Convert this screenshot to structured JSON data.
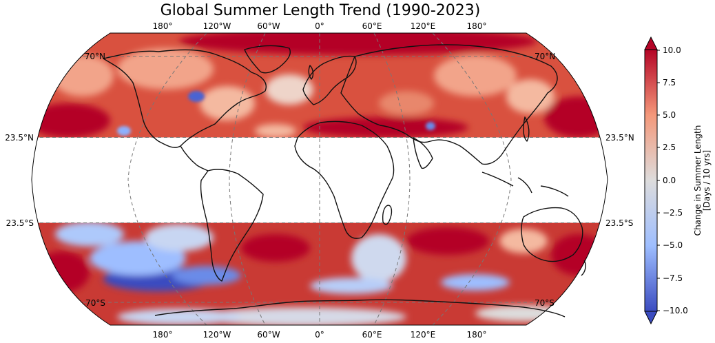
{
  "title": "Global Summer Length Trend (1990-2023)",
  "top_lon_labels": [
    "180°",
    "120°W",
    "60°W",
    "0°",
    "60°E",
    "120°E",
    "180°"
  ],
  "bottom_lon_labels": [
    "180°",
    "120°W",
    "60°W",
    "0°",
    "60°E",
    "120°E",
    "180°"
  ],
  "lat_labels": {
    "north_70": "70°N",
    "north_23": "23.5°N",
    "south_23": "23.5°S",
    "south_70": "70°S"
  },
  "colorbar": {
    "label_line1": "Change in Summer Length",
    "label_line2": "[Days / 10 yrs]",
    "ticks": [
      "10.0",
      "7.5",
      "5.0",
      "2.5",
      "0.0",
      "−2.5",
      "−5.0",
      "−7.5",
      "−10.0"
    ],
    "cmap": "coolwarm",
    "vmin": -10,
    "vmax": 10,
    "extend": "both",
    "colors": {
      "dark_blue": "#3b4cc0",
      "light_blue": "#8db0fe",
      "neutral": "#dddcdc",
      "light_red": "#f49a7b",
      "dark_red": "#b40426"
    }
  },
  "map": {
    "projection": "Robinson",
    "masked_band": "23.5°S to 23.5°N",
    "gridline_color": "#777777"
  }
}
